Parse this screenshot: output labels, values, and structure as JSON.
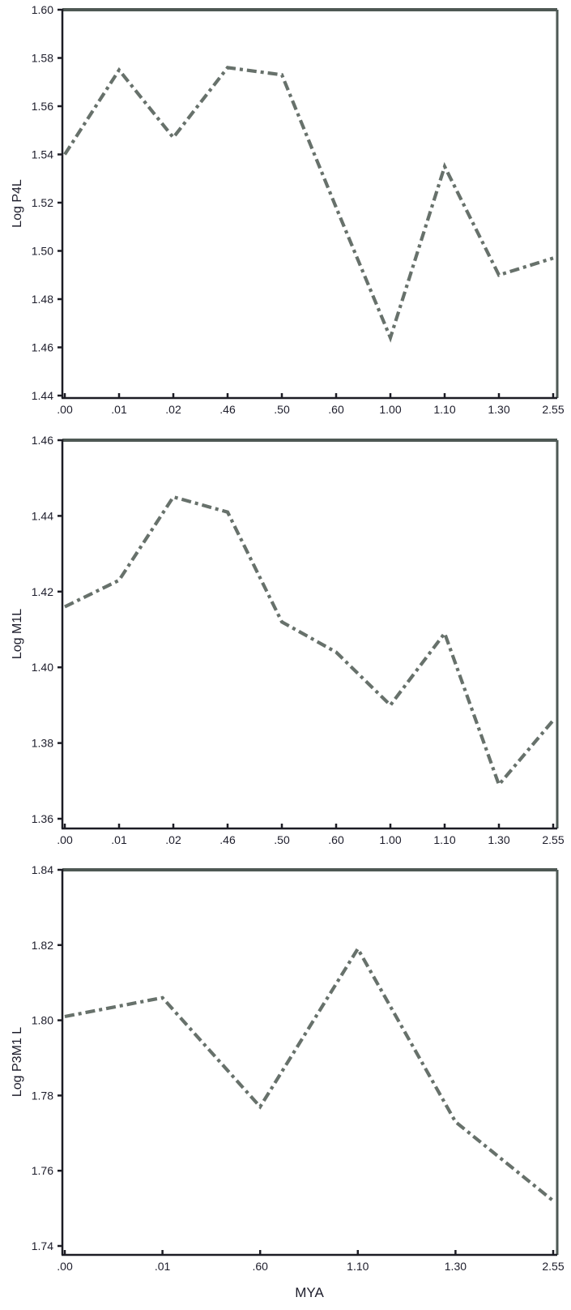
{
  "colors": {
    "line": "#67716b",
    "axis": "#1c1c24",
    "frame": "#4e5854",
    "tick_label": "#1d1d2b",
    "background": "#ffffff"
  },
  "chart_data": [
    {
      "type": "line",
      "name": "log-p4l",
      "ylabel": "Log P4L",
      "xlabel": "",
      "ylim": [
        1.44,
        1.6
      ],
      "yticks": [
        "1.44",
        "1.46",
        "1.48",
        "1.50",
        "1.52",
        "1.54",
        "1.56",
        "1.58",
        "1.60"
      ],
      "categories": [
        ".00",
        ".01",
        ".02",
        ".46",
        ".50",
        ".60",
        "1.00",
        "1.10",
        "1.30",
        "2.55"
      ],
      "values": [
        1.54,
        1.575,
        1.547,
        1.576,
        1.573,
        1.518,
        1.464,
        1.535,
        1.49,
        1.497
      ],
      "grid": false,
      "legend": "none",
      "line_style": "dash-dot"
    },
    {
      "type": "line",
      "name": "log-m1l",
      "ylabel": "Log M1L",
      "xlabel": "",
      "ylim": [
        1.36,
        1.46
      ],
      "yticks": [
        "1.36",
        "1.38",
        "1.40",
        "1.42",
        "1.44",
        "1.46"
      ],
      "categories": [
        ".00",
        ".01",
        ".02",
        ".46",
        ".50",
        ".60",
        "1.00",
        "1.10",
        "1.30",
        "2.55"
      ],
      "values": [
        1.416,
        1.423,
        1.445,
        1.441,
        1.412,
        1.404,
        1.39,
        1.409,
        1.369,
        1.386
      ],
      "grid": false,
      "legend": "none",
      "line_style": "dash-dot"
    },
    {
      "type": "line",
      "name": "log-p3m1l",
      "ylabel": "Log P3M1 L",
      "xlabel": "MYA",
      "ylim": [
        1.74,
        1.84
      ],
      "yticks": [
        "1.74",
        "1.76",
        "1.78",
        "1.80",
        "1.82",
        "1.84"
      ],
      "categories": [
        ".00",
        ".01",
        ".60",
        "1.10",
        "1.30",
        "2.55"
      ],
      "values": [
        1.801,
        1.806,
        1.777,
        1.819,
        1.773,
        1.752
      ],
      "grid": false,
      "legend": "none",
      "line_style": "dash-dot"
    }
  ]
}
